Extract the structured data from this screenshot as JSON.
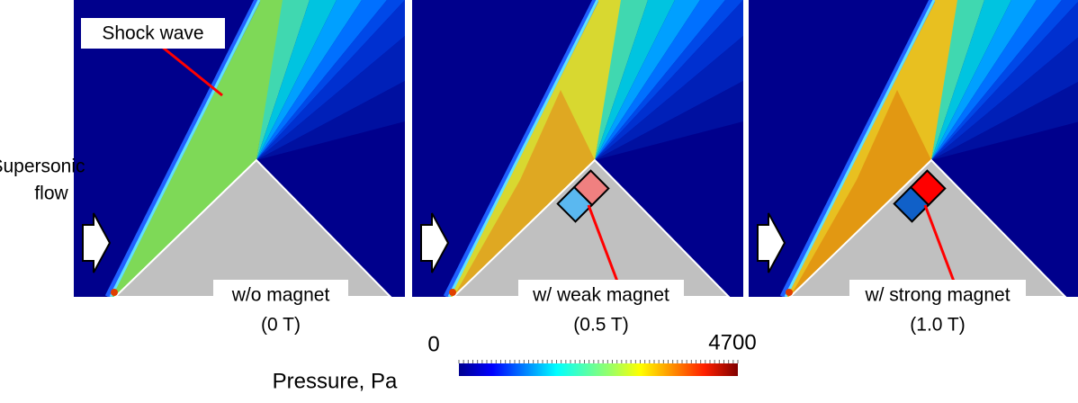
{
  "annotations": {
    "shock_wave": "Shock wave",
    "supersonic_flow": [
      "Supersonic",
      "flow"
    ]
  },
  "panels": [
    {
      "label": "w/o magnet",
      "field": "(0 T)"
    },
    {
      "label": "w/ weak magnet",
      "field": "(0.5 T)"
    },
    {
      "label": "w/ strong magnet",
      "field": "(1.0 T)"
    }
  ],
  "colorbar": {
    "title": "Pressure, Pa",
    "min": 0,
    "max": 4700
  }
}
